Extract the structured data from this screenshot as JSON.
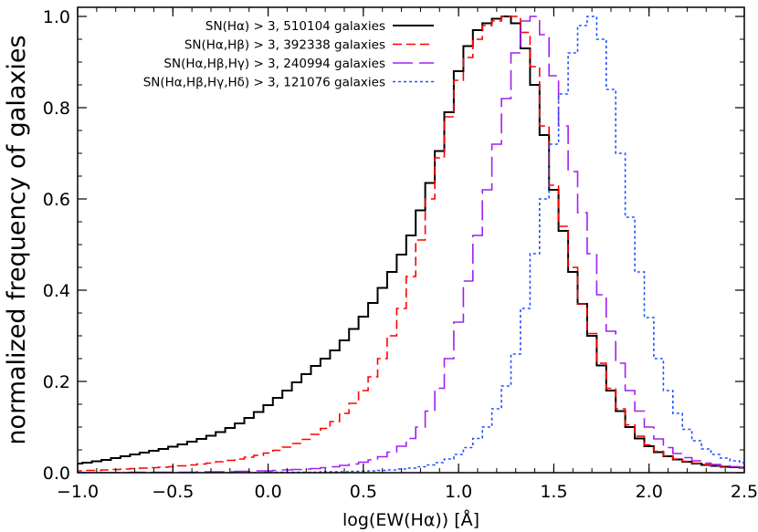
{
  "chart_data": {
    "type": "line",
    "style": "step-histogram",
    "title": "",
    "xlabel": "log(EW(Hα)) [Å]",
    "ylabel": "normalized frequency of galaxies",
    "xlim": [
      -1.0,
      2.5
    ],
    "ylim": [
      0.0,
      1.02
    ],
    "x_ticks": [
      -1.0,
      -0.5,
      0.0,
      0.5,
      1.0,
      1.5,
      2.0,
      2.5
    ],
    "x_tick_labels": [
      "−1.0",
      "−0.5",
      "0.0",
      "0.5",
      "1.0",
      "1.5",
      "2.0",
      "2.5"
    ],
    "y_ticks": [
      0.0,
      0.2,
      0.4,
      0.6,
      0.8,
      1.0
    ],
    "y_tick_labels": [
      "0.0",
      "0.2",
      "0.4",
      "0.6",
      "0.8",
      "1.0"
    ],
    "grid": false,
    "legend_position": "top-left",
    "x": [
      -1.0,
      -0.95,
      -0.9,
      -0.85,
      -0.8,
      -0.75,
      -0.7,
      -0.65,
      -0.6,
      -0.55,
      -0.5,
      -0.45,
      -0.4,
      -0.35,
      -0.3,
      -0.25,
      -0.2,
      -0.15,
      -0.1,
      -0.05,
      0.0,
      0.05,
      0.1,
      0.15,
      0.2,
      0.25,
      0.3,
      0.35,
      0.4,
      0.45,
      0.5,
      0.55,
      0.6,
      0.65,
      0.7,
      0.75,
      0.8,
      0.85,
      0.9,
      0.95,
      1.0,
      1.05,
      1.1,
      1.15,
      1.2,
      1.25,
      1.3,
      1.35,
      1.4,
      1.45,
      1.5,
      1.55,
      1.6,
      1.65,
      1.7,
      1.75,
      1.8,
      1.85,
      1.9,
      1.95,
      2.0,
      2.05,
      2.1,
      2.15,
      2.2,
      2.25,
      2.3,
      2.35,
      2.4,
      2.45,
      2.5
    ],
    "series": [
      {
        "name": "SN(Hα) > 3, 510104 galaxies",
        "color": "#000000",
        "dash": "solid",
        "values": [
          0.02,
          0.022,
          0.025,
          0.028,
          0.032,
          0.036,
          0.04,
          0.044,
          0.048,
          0.052,
          0.057,
          0.062,
          0.068,
          0.074,
          0.081,
          0.089,
          0.098,
          0.108,
          0.12,
          0.133,
          0.148,
          0.164,
          0.18,
          0.198,
          0.216,
          0.234,
          0.25,
          0.268,
          0.29,
          0.315,
          0.342,
          0.372,
          0.405,
          0.44,
          0.478,
          0.52,
          0.575,
          0.635,
          0.705,
          0.79,
          0.88,
          0.935,
          0.97,
          0.985,
          0.995,
          1.0,
          0.985,
          0.93,
          0.85,
          0.74,
          0.62,
          0.53,
          0.44,
          0.37,
          0.3,
          0.235,
          0.18,
          0.135,
          0.1,
          0.075,
          0.058,
          0.045,
          0.036,
          0.029,
          0.024,
          0.02,
          0.017,
          0.015,
          0.013,
          0.012,
          0.011
        ]
      },
      {
        "name": "SN(Hα,Hβ) > 3, 392338 galaxies",
        "color": "#ff0000",
        "dash": "10 5",
        "values": [
          0.004,
          0.005,
          0.005,
          0.006,
          0.007,
          0.008,
          0.009,
          0.01,
          0.011,
          0.012,
          0.013,
          0.015,
          0.017,
          0.019,
          0.021,
          0.024,
          0.027,
          0.03,
          0.034,
          0.038,
          0.043,
          0.049,
          0.056,
          0.064,
          0.073,
          0.084,
          0.097,
          0.112,
          0.13,
          0.152,
          0.18,
          0.21,
          0.25,
          0.3,
          0.36,
          0.43,
          0.51,
          0.6,
          0.69,
          0.78,
          0.86,
          0.91,
          0.95,
          0.98,
          0.99,
          1.0,
          1.0,
          0.965,
          0.89,
          0.76,
          0.63,
          0.54,
          0.45,
          0.37,
          0.305,
          0.24,
          0.185,
          0.14,
          0.105,
          0.08,
          0.061,
          0.047,
          0.037,
          0.03,
          0.025,
          0.021,
          0.018,
          0.016,
          0.014,
          0.013,
          0.012
        ]
      },
      {
        "name": "SN(Hα,Hβ,Hγ) > 3, 240994 galaxies",
        "color": "#a020f0",
        "dash": "22 7",
        "values": [
          0.0,
          0.0,
          0.0,
          0.0,
          0.0,
          0.0,
          0.001,
          0.001,
          0.001,
          0.001,
          0.001,
          0.001,
          0.001,
          0.002,
          0.002,
          0.002,
          0.002,
          0.003,
          0.003,
          0.004,
          0.004,
          0.005,
          0.006,
          0.007,
          0.008,
          0.009,
          0.011,
          0.013,
          0.016,
          0.019,
          0.023,
          0.028,
          0.035,
          0.045,
          0.058,
          0.075,
          0.1,
          0.135,
          0.185,
          0.25,
          0.33,
          0.42,
          0.52,
          0.62,
          0.72,
          0.82,
          0.92,
          0.99,
          1.0,
          0.96,
          0.87,
          0.76,
          0.66,
          0.57,
          0.48,
          0.39,
          0.31,
          0.24,
          0.18,
          0.135,
          0.1,
          0.074,
          0.055,
          0.042,
          0.033,
          0.026,
          0.021,
          0.018,
          0.015,
          0.013,
          0.012
        ]
      },
      {
        "name": "SN(Hα,Hβ,Hγ,Hδ) > 3, 121076 galaxies",
        "color": "#1e50ff",
        "dash": "3 3",
        "values": [
          0.0,
          0.0,
          0.0,
          0.0,
          0.0,
          0.0,
          0.0,
          0.0,
          0.0,
          0.0,
          0.0,
          0.0,
          0.0,
          0.0,
          0.0,
          0.0,
          0.0,
          0.0,
          0.0,
          0.0,
          0.001,
          0.001,
          0.001,
          0.001,
          0.001,
          0.001,
          0.002,
          0.002,
          0.002,
          0.003,
          0.003,
          0.004,
          0.005,
          0.006,
          0.008,
          0.01,
          0.013,
          0.017,
          0.022,
          0.03,
          0.04,
          0.055,
          0.075,
          0.1,
          0.14,
          0.19,
          0.26,
          0.36,
          0.48,
          0.6,
          0.72,
          0.83,
          0.92,
          0.98,
          1.0,
          0.95,
          0.84,
          0.7,
          0.56,
          0.44,
          0.34,
          0.25,
          0.18,
          0.13,
          0.095,
          0.07,
          0.052,
          0.04,
          0.032,
          0.026,
          0.022
        ]
      }
    ]
  }
}
